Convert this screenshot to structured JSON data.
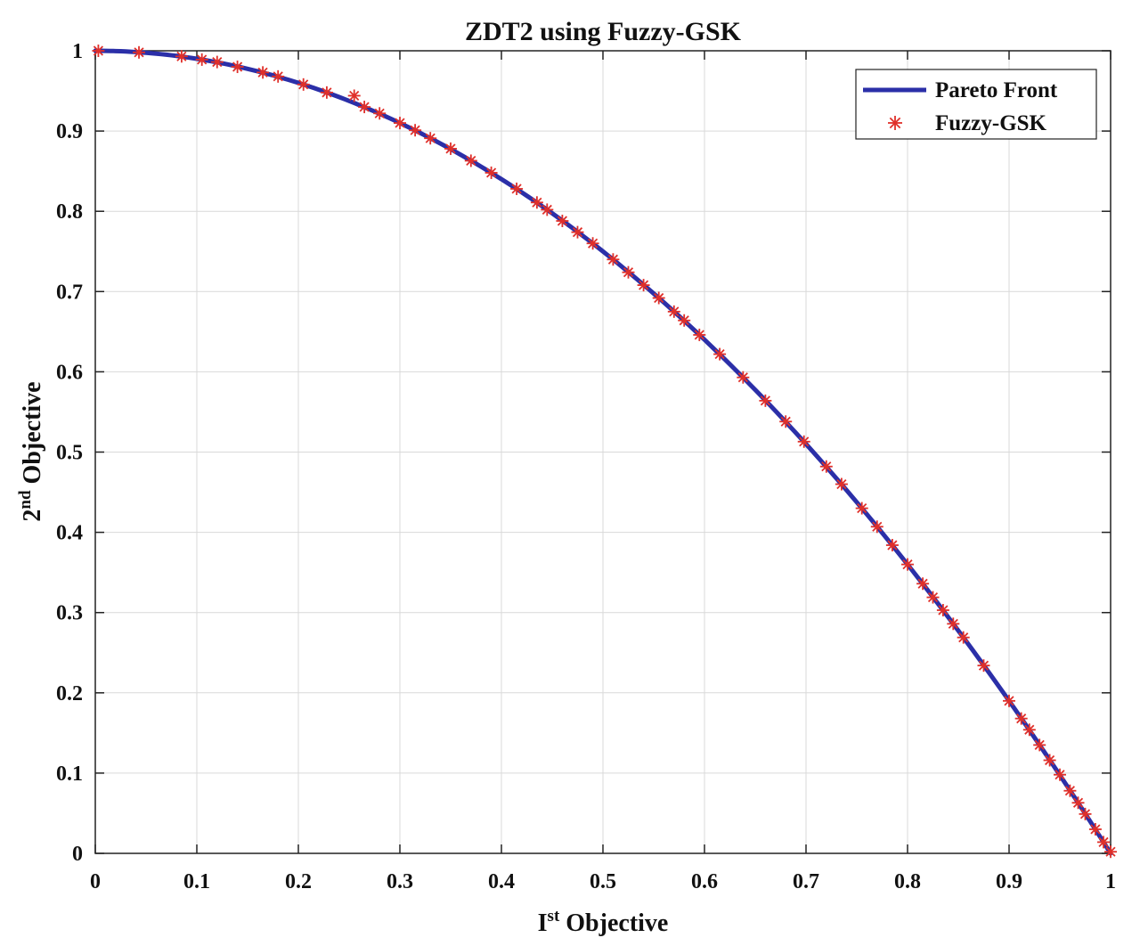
{
  "chart_data": {
    "type": "scatter",
    "title": "ZDT2 using Fuzzy-GSK",
    "xlabel": {
      "base": "I",
      "sup": "st",
      "rest": " Objective"
    },
    "ylabel": {
      "base": "2",
      "sup": "nd",
      "rest": " Objective"
    },
    "xlim": [
      0,
      1
    ],
    "ylim": [
      0,
      1
    ],
    "x_ticks": [
      "0",
      "0.1",
      "0.2",
      "0.3",
      "0.4",
      "0.5",
      "0.6",
      "0.7",
      "0.8",
      "0.9",
      "1"
    ],
    "y_ticks": [
      "0",
      "0.1",
      "0.2",
      "0.3",
      "0.4",
      "0.5",
      "0.6",
      "0.7",
      "0.8",
      "0.9",
      "1"
    ],
    "grid": true,
    "legend_position": "top-right",
    "series": [
      {
        "name": "Pareto Front",
        "kind": "line",
        "color": "#2b2fa8",
        "function": "y = 1 - x^2",
        "x_range": [
          0,
          1
        ]
      },
      {
        "name": "Fuzzy-GSK",
        "kind": "scatter",
        "marker": "asterisk",
        "color": "#e0302a",
        "x": [
          0.003,
          0.043,
          0.085,
          0.105,
          0.12,
          0.14,
          0.165,
          0.18,
          0.205,
          0.228,
          0.255,
          0.265,
          0.28,
          0.3,
          0.315,
          0.33,
          0.35,
          0.37,
          0.39,
          0.415,
          0.435,
          0.445,
          0.46,
          0.475,
          0.49,
          0.51,
          0.525,
          0.54,
          0.555,
          0.57,
          0.58,
          0.595,
          0.615,
          0.638,
          0.66,
          0.68,
          0.698,
          0.72,
          0.735,
          0.755,
          0.77,
          0.785,
          0.8,
          0.815,
          0.825,
          0.835,
          0.845,
          0.855,
          0.875,
          0.9,
          0.912,
          0.92,
          0.93,
          0.94,
          0.95,
          0.96,
          0.968,
          0.975,
          0.985,
          0.993,
          1.0
        ],
        "y": [
          1.0,
          0.998,
          0.993,
          0.989,
          0.986,
          0.98,
          0.973,
          0.968,
          0.958,
          0.948,
          0.944,
          0.93,
          0.922,
          0.91,
          0.901,
          0.891,
          0.878,
          0.863,
          0.848,
          0.828,
          0.811,
          0.802,
          0.788,
          0.774,
          0.76,
          0.74,
          0.724,
          0.708,
          0.692,
          0.675,
          0.664,
          0.646,
          0.622,
          0.593,
          0.564,
          0.538,
          0.513,
          0.482,
          0.46,
          0.43,
          0.407,
          0.384,
          0.36,
          0.336,
          0.319,
          0.303,
          0.286,
          0.269,
          0.234,
          0.19,
          0.168,
          0.154,
          0.135,
          0.116,
          0.098,
          0.078,
          0.063,
          0.049,
          0.03,
          0.014,
          0.002
        ]
      }
    ]
  }
}
